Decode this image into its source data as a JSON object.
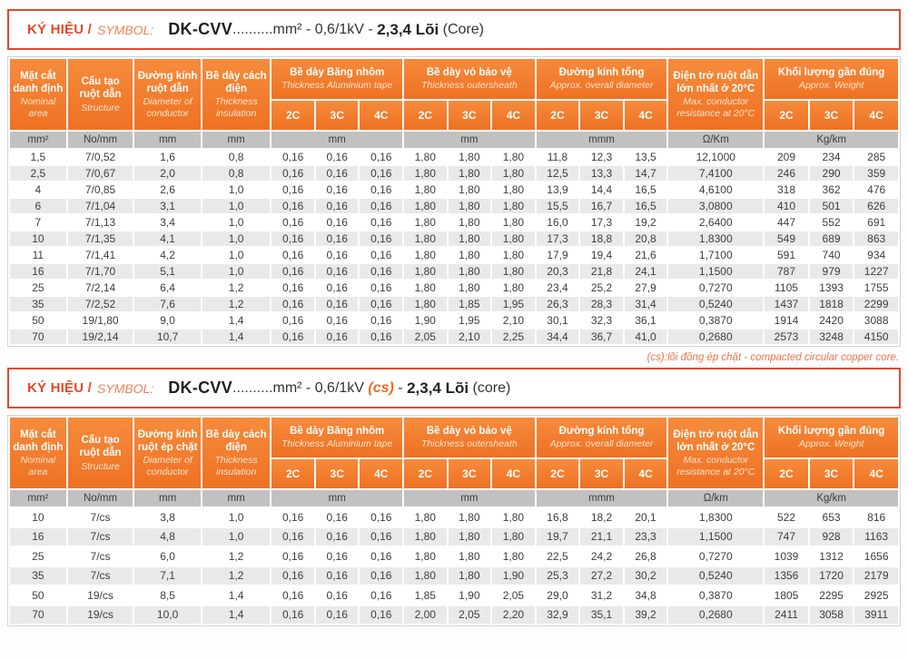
{
  "colors": {
    "orange_header": "#EE7123",
    "accent_red": "#E8472B",
    "units_gray": "#C1C1C1",
    "alt_row": "#E9E9E9"
  },
  "note": "(cs):lõi đồng ép chặt - compacted circular copper core.",
  "tables": [
    {
      "symbol": {
        "label_vi": "KÝ HIỆU /",
        "label_en": "SYMBOL:",
        "code": "DK-CVV",
        "dots": "..........",
        "spec": "mm² - 0,6/1kV",
        "cs": "",
        "dash": " - ",
        "cores": "2,3,4 Lõi",
        "tail": " (Core)"
      },
      "head": {
        "c1_vi": "Mặt cắt danh định",
        "c1_en": "Nominal area",
        "c2_vi": "Cấu tạo ruột dẫn",
        "c2_en": "Structure",
        "c3_vi": "Đường kính ruột dẫn",
        "c3_en": "Diameter of conductor",
        "c4_vi": "Bề dày cách điện",
        "c4_en": "Thickness insulation",
        "g1_vi": "Bề dày Băng nhôm",
        "g1_en": "Thickness Aluminium tape",
        "g2_vi": "Bề dày vỏ bảo vệ",
        "g2_en": "Thickness outersheath",
        "g3_vi": "Đường kính tổng",
        "g3_en": "Approx. overall diameter",
        "c14_vi": "Điện trở ruột dẫn lớn nhất ở 20°C",
        "c14_en": "Max. conductor resistance at 20°C",
        "g4_vi": "Khối lượng gần đúng",
        "g4_en": "Approx. Weight",
        "sub": [
          "2C",
          "3C",
          "4C"
        ]
      },
      "units": [
        "mm²",
        "No/mm",
        "mm",
        "mm",
        "mm",
        "mm",
        "mmm",
        "Ω/Km",
        "Kg/km"
      ],
      "rows": [
        [
          "1,5",
          "7/0,52",
          "1,6",
          "0,8",
          "0,16",
          "0,16",
          "0,16",
          "1,80",
          "1,80",
          "1,80",
          "11,8",
          "12,3",
          "13,5",
          "12,1000",
          "209",
          "234",
          "285"
        ],
        [
          "2,5",
          "7/0,67",
          "2,0",
          "0,8",
          "0,16",
          "0,16",
          "0,16",
          "1,80",
          "1,80",
          "1,80",
          "12,5",
          "13,3",
          "14,7",
          "7,4100",
          "246",
          "290",
          "359"
        ],
        [
          "4",
          "7/0,85",
          "2,6",
          "1,0",
          "0,16",
          "0,16",
          "0,16",
          "1,80",
          "1,80",
          "1,80",
          "13,9",
          "14,4",
          "16,5",
          "4,6100",
          "318",
          "362",
          "476"
        ],
        [
          "6",
          "7/1,04",
          "3,1",
          "1,0",
          "0,16",
          "0,16",
          "0,16",
          "1,80",
          "1,80",
          "1,80",
          "15,5",
          "16,7",
          "16,5",
          "3,0800",
          "410",
          "501",
          "626"
        ],
        [
          "7",
          "7/1,13",
          "3,4",
          "1,0",
          "0,16",
          "0,16",
          "0,16",
          "1,80",
          "1,80",
          "1,80",
          "16,0",
          "17,3",
          "19,2",
          "2,6400",
          "447",
          "552",
          "691"
        ],
        [
          "10",
          "7/1,35",
          "4,1",
          "1,0",
          "0,16",
          "0,16",
          "0,16",
          "1,80",
          "1,80",
          "1,80",
          "17,3",
          "18,8",
          "20,8",
          "1,8300",
          "549",
          "689",
          "863"
        ],
        [
          "11",
          "7/1,41",
          "4,2",
          "1,0",
          "0,16",
          "0,16",
          "0,16",
          "1,80",
          "1,80",
          "1,80",
          "17,9",
          "19,4",
          "21,6",
          "1,7100",
          "591",
          "740",
          "934"
        ],
        [
          "16",
          "7/1,70",
          "5,1",
          "1,0",
          "0,16",
          "0,16",
          "0,16",
          "1,80",
          "1,80",
          "1,80",
          "20,3",
          "21,8",
          "24,1",
          "1,1500",
          "787",
          "979",
          "1227"
        ],
        [
          "25",
          "7/2,14",
          "6,4",
          "1,2",
          "0,16",
          "0,16",
          "0,16",
          "1,80",
          "1,80",
          "1,80",
          "23,4",
          "25,2",
          "27,9",
          "0,7270",
          "1105",
          "1393",
          "1755"
        ],
        [
          "35",
          "7/2,52",
          "7,6",
          "1,2",
          "0,16",
          "0,16",
          "0,16",
          "1,80",
          "1,85",
          "1,95",
          "26,3",
          "28,3",
          "31,4",
          "0,5240",
          "1437",
          "1818",
          "2299"
        ],
        [
          "50",
          "19/1,80",
          "9,0",
          "1,4",
          "0,16",
          "0,16",
          "0,16",
          "1,90",
          "1,95",
          "2,10",
          "30,1",
          "32,3",
          "36,1",
          "0,3870",
          "1914",
          "2420",
          "3088"
        ],
        [
          "70",
          "19/2,14",
          "10,7",
          "1,4",
          "0,16",
          "0,16",
          "0,16",
          "2,05",
          "2,10",
          "2,25",
          "34,4",
          "36,7",
          "41,0",
          "0,2680",
          "2573",
          "3248",
          "4150"
        ]
      ]
    },
    {
      "symbol": {
        "label_vi": "KÝ HIỆU /",
        "label_en": "SYMBOL:",
        "code": "DK-CVV",
        "dots": "..........",
        "spec": "mm² - 0,6/1kV ",
        "cs": "(cs)",
        "dash": " - ",
        "cores": "2,3,4 Lõi",
        "tail": " (core)"
      },
      "head": {
        "c1_vi": "Mặt cắt danh định",
        "c1_en": "Nominal area",
        "c2_vi": "Cấu tạo ruột dẫn",
        "c2_en": "Structure",
        "c3_vi": "Đường kính ruột ép chặt",
        "c3_en": "Diameter of conductor",
        "c4_vi": "Bề dày cách điện",
        "c4_en": "Thickness insulation",
        "g1_vi": "Bề dày Băng nhôm",
        "g1_en": "Thickness Aluminium tape",
        "g2_vi": "Bề dày vỏ bảo vệ",
        "g2_en": "Thickness outersheath",
        "g3_vi": "Đường kính tổng",
        "g3_en": "Approx. overall diameter",
        "c14_vi": "Điện trở ruột dẫn lớn nhất ở 20°C",
        "c14_en": "Max. conductor resistance at 20°C",
        "g4_vi": "Khối lượng gần đúng",
        "g4_en": "Approx. Weight",
        "sub": [
          "2C",
          "3C",
          "4C"
        ]
      },
      "units": [
        "mm²",
        "No/mm",
        "mm",
        "mm",
        "mm",
        "mm",
        "mmm",
        "Ω/km",
        "Kg/km"
      ],
      "rows": [
        [
          "10",
          "7/cs",
          "3,8",
          "1,0",
          "0,16",
          "0,16",
          "0,16",
          "1,80",
          "1,80",
          "1,80",
          "16,8",
          "18,2",
          "20,1",
          "1,8300",
          "522",
          "653",
          "816"
        ],
        [
          "16",
          "7/cs",
          "4,8",
          "1,0",
          "0,16",
          "0,16",
          "0,16",
          "1,80",
          "1,80",
          "1,80",
          "19,7",
          "21,1",
          "23,3",
          "1,1500",
          "747",
          "928",
          "1163"
        ],
        [
          "25",
          "7/cs",
          "6,0",
          "1,2",
          "0,16",
          "0,16",
          "0,16",
          "1,80",
          "1,80",
          "1,80",
          "22,5",
          "24,2",
          "26,8",
          "0,7270",
          "1039",
          "1312",
          "1656"
        ],
        [
          "35",
          "7/cs",
          "7,1",
          "1,2",
          "0,16",
          "0,16",
          "0,16",
          "1,80",
          "1,80",
          "1,90",
          "25,3",
          "27,2",
          "30,2",
          "0,5240",
          "1356",
          "1720",
          "2179"
        ],
        [
          "50",
          "19/cs",
          "8,5",
          "1,4",
          "0,16",
          "0,16",
          "0,16",
          "1,85",
          "1,90",
          "2,05",
          "29,0",
          "31,2",
          "34,8",
          "0,3870",
          "1805",
          "2295",
          "2925"
        ],
        [
          "70",
          "19/cs",
          "10,0",
          "1,4",
          "0,16",
          "0,16",
          "0,16",
          "2,00",
          "2,05",
          "2,20",
          "32,9",
          "35,1",
          "39,2",
          "0,2680",
          "2411",
          "3058",
          "3911"
        ]
      ]
    }
  ]
}
